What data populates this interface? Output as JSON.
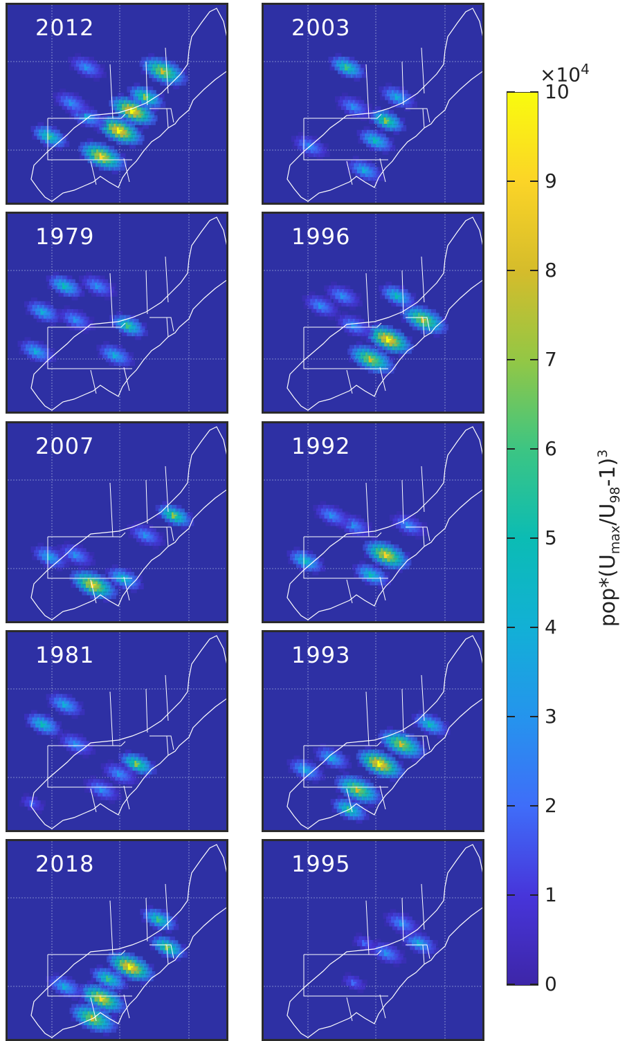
{
  "colors": {
    "background": "#2e30a4",
    "map_lines": "#ffffff",
    "grid": "#9aa4d8",
    "colormap": [
      "#3d26a8",
      "#4735da",
      "#3f6df9",
      "#2594ed",
      "#12b0d6",
      "#0bbcb4",
      "#3cc583",
      "#93c745",
      "#d5bc2b",
      "#fbd427",
      "#f9fb0e"
    ]
  },
  "chart_data": {
    "type": "heatmap",
    "panels": [
      {
        "year": "2012",
        "hotspots": [
          [
            0.5,
            0.62,
            1.0
          ],
          [
            0.56,
            0.52,
            1.0
          ],
          [
            0.42,
            0.75,
            0.9
          ],
          [
            0.7,
            0.32,
            0.8
          ],
          [
            0.18,
            0.65,
            0.6
          ],
          [
            0.62,
            0.45,
            0.7
          ],
          [
            0.35,
            0.55,
            0.4
          ],
          [
            0.28,
            0.48,
            0.3
          ],
          [
            0.35,
            0.3,
            0.3
          ]
        ]
      },
      {
        "year": "2003",
        "hotspots": [
          [
            0.37,
            0.3,
            0.6
          ],
          [
            0.55,
            0.57,
            0.7
          ],
          [
            0.5,
            0.67,
            0.5
          ],
          [
            0.6,
            0.45,
            0.4
          ],
          [
            0.4,
            0.5,
            0.3
          ],
          [
            0.2,
            0.7,
            0.3
          ],
          [
            0.45,
            0.82,
            0.4
          ]
        ]
      },
      {
        "year": "1979",
        "hotspots": [
          [
            0.54,
            0.55,
            0.6
          ],
          [
            0.25,
            0.35,
            0.5
          ],
          [
            0.15,
            0.48,
            0.4
          ],
          [
            0.48,
            0.7,
            0.4
          ],
          [
            0.3,
            0.52,
            0.3
          ],
          [
            0.12,
            0.68,
            0.4
          ],
          [
            0.4,
            0.35,
            0.3
          ]
        ]
      },
      {
        "year": "1996",
        "hotspots": [
          [
            0.56,
            0.62,
            1.0
          ],
          [
            0.48,
            0.72,
            0.8
          ],
          [
            0.72,
            0.52,
            0.8
          ],
          [
            0.6,
            0.4,
            0.5
          ],
          [
            0.25,
            0.45,
            0.3
          ],
          [
            0.4,
            0.55,
            0.3
          ],
          [
            0.35,
            0.4,
            0.3
          ]
        ]
      },
      {
        "year": "2007",
        "hotspots": [
          [
            0.38,
            0.8,
            0.9
          ],
          [
            0.75,
            0.45,
            0.7
          ],
          [
            0.52,
            0.77,
            0.5
          ],
          [
            0.18,
            0.66,
            0.4
          ],
          [
            0.3,
            0.65,
            0.3
          ],
          [
            0.62,
            0.55,
            0.3
          ]
        ]
      },
      {
        "year": "1992",
        "hotspots": [
          [
            0.55,
            0.65,
            0.9
          ],
          [
            0.48,
            0.75,
            0.5
          ],
          [
            0.18,
            0.68,
            0.5
          ],
          [
            0.4,
            0.5,
            0.3
          ],
          [
            0.3,
            0.45,
            0.3
          ],
          [
            0.65,
            0.5,
            0.3
          ]
        ]
      },
      {
        "year": "1981",
        "hotspots": [
          [
            0.58,
            0.65,
            0.7
          ],
          [
            0.25,
            0.35,
            0.4
          ],
          [
            0.15,
            0.45,
            0.5
          ],
          [
            0.42,
            0.78,
            0.3
          ],
          [
            0.5,
            0.7,
            0.3
          ],
          [
            0.3,
            0.55,
            0.3
          ],
          [
            0.1,
            0.85,
            0.2
          ]
        ]
      },
      {
        "year": "1993",
        "hotspots": [
          [
            0.52,
            0.65,
            1.0
          ],
          [
            0.42,
            0.78,
            0.8
          ],
          [
            0.62,
            0.55,
            0.8
          ],
          [
            0.38,
            0.88,
            0.6
          ],
          [
            0.75,
            0.45,
            0.5
          ],
          [
            0.18,
            0.68,
            0.4
          ],
          [
            0.3,
            0.62,
            0.4
          ]
        ]
      },
      {
        "year": "2018",
        "hotspots": [
          [
            0.55,
            0.62,
            1.0
          ],
          [
            0.42,
            0.78,
            0.9
          ],
          [
            0.38,
            0.88,
            0.8
          ],
          [
            0.72,
            0.52,
            0.7
          ],
          [
            0.68,
            0.38,
            0.6
          ],
          [
            0.25,
            0.72,
            0.4
          ],
          [
            0.45,
            0.68,
            0.6
          ]
        ]
      },
      {
        "year": "1995",
        "hotspots": [
          [
            0.7,
            0.5,
            0.4
          ],
          [
            0.55,
            0.55,
            0.3
          ],
          [
            0.45,
            0.5,
            0.2
          ],
          [
            0.4,
            0.7,
            0.2
          ],
          [
            0.62,
            0.4,
            0.3
          ]
        ]
      }
    ],
    "colorbar": {
      "min": 0,
      "max": 10,
      "ticks": [
        "0",
        "1",
        "2",
        "3",
        "4",
        "5",
        "6",
        "7",
        "8",
        "9",
        "10"
      ],
      "exponent_label": "×10",
      "exponent_power": "4",
      "label": {
        "base": "pop*(U",
        "sub1": "max",
        "mid": "/U",
        "sub2": "98",
        "tail": "-1)",
        "sup": "3"
      }
    }
  }
}
